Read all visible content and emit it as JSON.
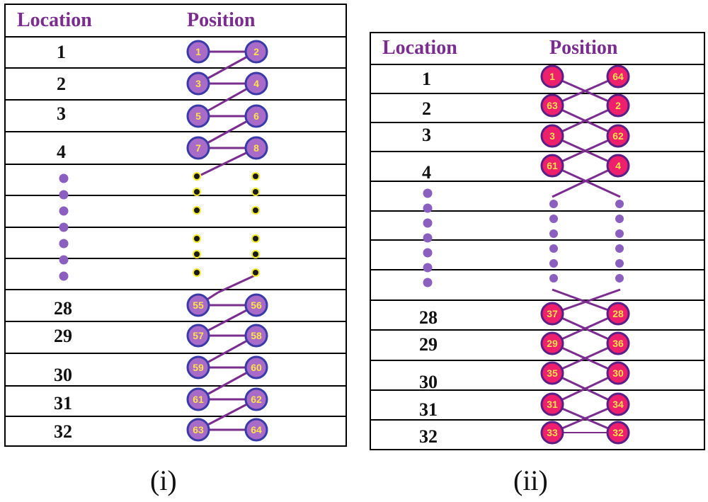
{
  "colors": {
    "header": "#7a2c8f",
    "edge": "#7a2c8f",
    "node_i_fill": "#a86cc8",
    "node_i_stroke": "#3a3aa8",
    "node_i_text": "#ffe14a",
    "node_ii_fill": "#ee1f6c",
    "node_ii_stroke": "#5a1f86",
    "node_ii_text": "#ffe14a",
    "dot_location": "#8a5fc0",
    "dot_i_fill": "#1a1a1a",
    "dot_i_ring": "#f4ea2a",
    "dot_ii": "#8a5fc0"
  },
  "panels": [
    {
      "caption": "(i)",
      "location_header": "Location",
      "position_header": "Position",
      "rows_top": [
        {
          "location": "1",
          "left": "1",
          "right": "2"
        },
        {
          "location": "2",
          "left": "3",
          "right": "4"
        },
        {
          "location": "3",
          "left": "5",
          "right": "6"
        },
        {
          "location": "4",
          "left": "7",
          "right": "8"
        }
      ],
      "rows_bottom": [
        {
          "location": "28",
          "left": "55",
          "right": "56"
        },
        {
          "location": "29",
          "left": "57",
          "right": "58"
        },
        {
          "location": "30",
          "left": "59",
          "right": "60"
        },
        {
          "location": "31",
          "left": "61",
          "right": "62"
        },
        {
          "location": "32",
          "left": "63",
          "right": "64"
        }
      ],
      "edge_pattern": "zigzag"
    },
    {
      "caption": "(ii)",
      "location_header": "Location",
      "position_header": "Position",
      "rows_top": [
        {
          "location": "1",
          "left": "1",
          "right": "64"
        },
        {
          "location": "2",
          "left": "63",
          "right": "2"
        },
        {
          "location": "3",
          "left": "3",
          "right": "62"
        },
        {
          "location": "4",
          "left": "61",
          "right": "4"
        }
      ],
      "rows_bottom": [
        {
          "location": "28",
          "left": "37",
          "right": "28"
        },
        {
          "location": "29",
          "left": "29",
          "right": "36"
        },
        {
          "location": "30",
          "left": "35",
          "right": "30"
        },
        {
          "location": "31",
          "left": "31",
          "right": "34"
        },
        {
          "location": "32",
          "left": "33",
          "right": "32"
        }
      ],
      "edge_pattern": "cross"
    }
  ]
}
